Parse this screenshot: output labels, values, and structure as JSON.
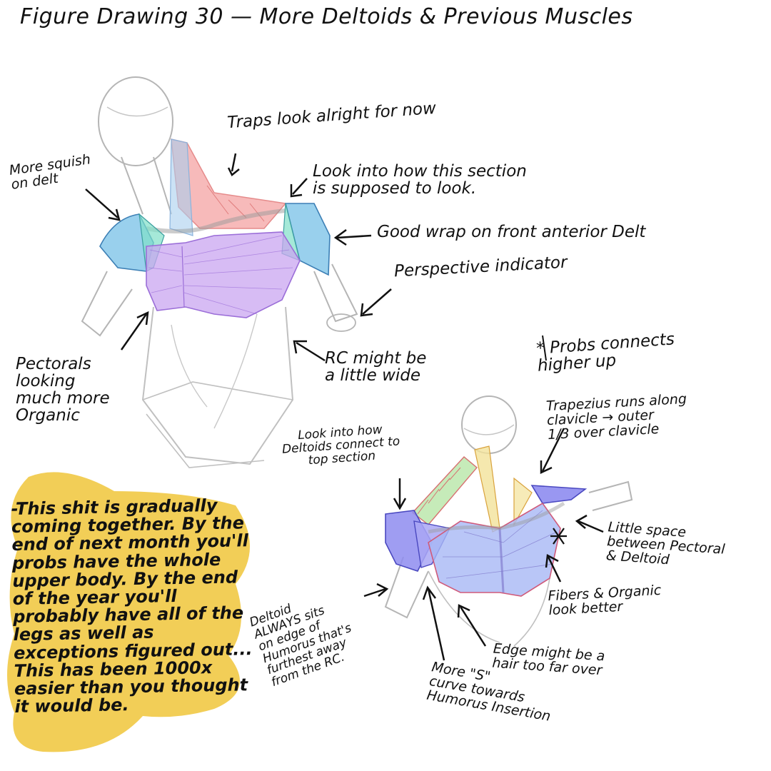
{
  "title": "Figure Drawing 30 — More Deltoids & Previous Muscles",
  "notes_upper": {
    "traps": "Traps look alright for now",
    "squish": "More squish\non delt",
    "look_section": "Look into how this section\nis supposed to look.",
    "good_wrap": "Good wrap on front anterior Delt",
    "perspective": "Perspective indicator",
    "pectorals": "Pectorals\nlooking\nmuch more\nOrganic",
    "rc_wide": "RC might be\na little wide"
  },
  "notes_lower": {
    "probs": "* Probs connects\nhigher up",
    "trapezius": "Trapezius runs along\nclavicle → outer\n1/3 over clavicle",
    "deltoids_connect": "Look into how\nDeltoids connect to\ntop section",
    "little_space": "Little space\nbetween Pectoral\n& Deltoid",
    "fibers": "Fibers & Organic\nlook better",
    "deltoid_always": "Deltoid\nALWAYS sits\non edge of\nHumorus that's\nfurthest away\nfrom the RC.",
    "edge": "Edge might be a\nhair too far over",
    "s_curve": "More \"S\"\ncurve towards\nHumorus Insertion"
  },
  "reflection": "-This shit is gradually coming together. By the end of next month you'll probs have the whole upper body. By the end of the year you'll probably have all of the legs as well as exceptions figured out... This has been 1000x easier than you thought it would be.",
  "colors": {
    "highlight": "#f0c53a",
    "trap_fill": "#f4a3a3",
    "delt_blue": "#7fc4e8",
    "delt_teal": "#7fe0c8",
    "pec_purple": "#c9a6f0",
    "pec_blue": "#a7b8f5",
    "trap_green": "#b8e6a8",
    "sketch": "#b5b5b5"
  }
}
